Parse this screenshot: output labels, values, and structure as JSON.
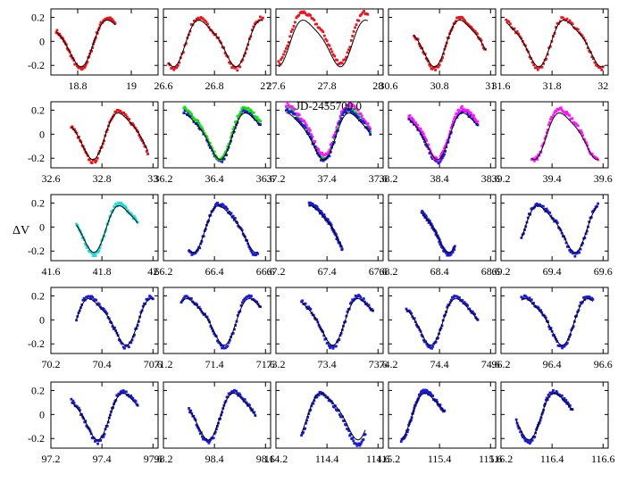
{
  "chart_data": {
    "type": "scatter",
    "ylabel": "ΔV",
    "xlabel": "JD-2455700.0",
    "shared_yticks": [
      "0.2",
      "0",
      "-0.2"
    ],
    "ylim": [
      -0.28,
      0.27
    ],
    "colors": {
      "red": "#e8141c",
      "blue": "#1a1ad8",
      "green": "#14dc14",
      "magenta": "#ff14ff",
      "cyan": "#22d8d8",
      "model": "#000000"
    },
    "panels": [
      {
        "xlim": [
          18.7,
          19.1
        ],
        "xticks": [
          "18.8",
          "19"
        ],
        "xtick_values": [
          18.8,
          19.0
        ],
        "data_range": [
          18.72,
          18.94
        ],
        "phase": 0.0,
        "shift": 0.0,
        "series": [
          "red"
        ]
      },
      {
        "xlim": [
          26.6,
          27.02
        ],
        "xticks": [
          "26.6",
          "26.8",
          "27"
        ],
        "xtick_values": [
          26.6,
          26.8,
          27.0
        ],
        "data_range": [
          26.62,
          26.99
        ],
        "phase": 0.05,
        "shift": 0.0,
        "series": [
          "red"
        ]
      },
      {
        "xlim": [
          27.6,
          28.02
        ],
        "xticks": [
          "27.6",
          "27.8",
          "28"
        ],
        "xtick_values": [
          27.6,
          27.8,
          28.0
        ],
        "data_range": [
          27.61,
          27.96
        ],
        "phase": 0.1,
        "shift": 0.05,
        "series": [
          "red"
        ]
      },
      {
        "xlim": [
          30.6,
          31.02
        ],
        "xticks": [
          "30.6",
          "30.8",
          "31"
        ],
        "xtick_values": [
          30.6,
          30.8,
          31.0
        ],
        "data_range": [
          30.7,
          30.98
        ],
        "phase": 0.15,
        "shift": 0.0,
        "series": [
          "red"
        ]
      },
      {
        "xlim": [
          31.6,
          32.02
        ],
        "xticks": [
          "31.6",
          "31.8",
          "32"
        ],
        "xtick_values": [
          31.6,
          31.8,
          32.0
        ],
        "data_range": [
          31.62,
          32.0
        ],
        "phase": 0.2,
        "shift": 0.0,
        "series": [
          "red"
        ]
      },
      {
        "xlim": [
          32.6,
          33.02
        ],
        "xticks": [
          "32.6",
          "32.8",
          "33"
        ],
        "xtick_values": [
          32.6,
          32.8,
          33.0
        ],
        "data_range": [
          32.68,
          32.98
        ],
        "phase": 0.05,
        "shift": 0.0,
        "series": [
          "red"
        ]
      },
      {
        "xlim": [
          36.2,
          36.62
        ],
        "xticks": [
          "36.2",
          "36.4",
          "36.6"
        ],
        "xtick_values": [
          36.2,
          36.4,
          36.6
        ],
        "data_range": [
          36.28,
          36.58
        ],
        "phase": 0.12,
        "shift": 0.0,
        "series": [
          "blue",
          "green"
        ]
      },
      {
        "xlim": [
          37.2,
          37.62
        ],
        "xticks": [
          "37.2",
          "37.4",
          "37.6"
        ],
        "xtick_values": [
          37.2,
          37.4,
          37.6
        ],
        "data_range": [
          37.24,
          37.57
        ],
        "phase": 0.18,
        "shift": 0.03,
        "series": [
          "green",
          "magenta",
          "blue"
        ]
      },
      {
        "xlim": [
          38.2,
          38.62
        ],
        "xticks": [
          "38.2",
          "38.4",
          "38.6"
        ],
        "xtick_values": [
          38.2,
          38.4,
          38.6
        ],
        "data_range": [
          38.28,
          38.55
        ],
        "phase": 0.08,
        "shift": 0.0,
        "series": [
          "blue",
          "magenta"
        ]
      },
      {
        "xlim": [
          39.2,
          39.62
        ],
        "xticks": [
          "39.2",
          "39.4",
          "39.6"
        ],
        "xtick_values": [
          39.2,
          39.4,
          39.6
        ],
        "data_range": [
          39.32,
          39.58
        ],
        "phase": 0.25,
        "shift": 0.02,
        "series": [
          "magenta"
        ]
      },
      {
        "xlim": [
          41.6,
          42.02
        ],
        "xticks": [
          "41.6",
          "41.8",
          "42"
        ],
        "xtick_values": [
          41.6,
          41.8,
          42.0
        ],
        "data_range": [
          41.7,
          41.94
        ],
        "phase": 0.3,
        "shift": 0.0,
        "series": [
          "cyan"
        ]
      },
      {
        "xlim": [
          66.2,
          66.62
        ],
        "xticks": [
          "66.2",
          "66.4",
          "66.6"
        ],
        "xtick_values": [
          66.2,
          66.4,
          66.6
        ],
        "data_range": [
          66.3,
          66.57
        ],
        "phase": 0.1,
        "shift": 0.0,
        "series": [
          "blue"
        ]
      },
      {
        "xlim": [
          67.2,
          67.62
        ],
        "xticks": [
          "67.2",
          "67.4",
          "67.6"
        ],
        "xtick_values": [
          67.2,
          67.4,
          67.6
        ],
        "data_range": [
          67.33,
          67.46
        ],
        "phase": 0.35,
        "shift": 0.0,
        "series": [
          "blue"
        ]
      },
      {
        "xlim": [
          68.2,
          68.62
        ],
        "xticks": [
          "68.2",
          "68.4",
          "68.6"
        ],
        "xtick_values": [
          68.2,
          68.4,
          68.6
        ],
        "data_range": [
          68.33,
          68.46
        ],
        "phase": 0.45,
        "shift": 0.0,
        "series": [
          "blue"
        ]
      },
      {
        "xlim": [
          69.2,
          69.62
        ],
        "xticks": [
          "69.2",
          "69.4",
          "69.6"
        ],
        "xtick_values": [
          69.2,
          69.4,
          69.6
        ],
        "data_range": [
          69.28,
          69.58
        ],
        "phase": 0.15,
        "shift": 0.0,
        "series": [
          "blue"
        ]
      },
      {
        "xlim": [
          70.2,
          70.62
        ],
        "xticks": [
          "70.2",
          "70.4",
          "70.6"
        ],
        "xtick_values": [
          70.2,
          70.4,
          70.6
        ],
        "data_range": [
          70.3,
          70.6
        ],
        "phase": 0.05,
        "shift": 0.0,
        "series": [
          "blue"
        ]
      },
      {
        "xlim": [
          71.2,
          71.62
        ],
        "xticks": [
          "71.2",
          "71.4",
          "71.6"
        ],
        "xtick_values": [
          71.2,
          71.4,
          71.6
        ],
        "data_range": [
          71.27,
          71.58
        ],
        "phase": 0.2,
        "shift": 0.0,
        "series": [
          "blue"
        ]
      },
      {
        "xlim": [
          73.2,
          73.62
        ],
        "xticks": [
          "73.2",
          "73.4",
          "73.6"
        ],
        "xtick_values": [
          73.2,
          73.4,
          73.6
        ],
        "data_range": [
          73.3,
          73.58
        ],
        "phase": 0.1,
        "shift": 0.0,
        "series": [
          "blue"
        ]
      },
      {
        "xlim": [
          74.2,
          74.62
        ],
        "xticks": [
          "74.2",
          "74.4",
          "74.6"
        ],
        "xtick_values": [
          74.2,
          74.4,
          74.6
        ],
        "data_range": [
          74.27,
          74.55
        ],
        "phase": 0.25,
        "shift": 0.0,
        "series": [
          "blue"
        ]
      },
      {
        "xlim": [
          96.2,
          96.62
        ],
        "xticks": [
          "96.2",
          "96.4",
          "96.6"
        ],
        "xtick_values": [
          96.2,
          96.4,
          96.6
        ],
        "data_range": [
          96.28,
          96.56
        ],
        "phase": 0.15,
        "shift": 0.0,
        "series": [
          "blue"
        ]
      },
      {
        "xlim": [
          97.2,
          97.62
        ],
        "xticks": [
          "97.2",
          "97.4",
          "97.6"
        ],
        "xtick_values": [
          97.2,
          97.4,
          97.6
        ],
        "data_range": [
          97.28,
          97.54
        ],
        "phase": 0.3,
        "shift": 0.0,
        "series": [
          "blue"
        ]
      },
      {
        "xlim": [
          98.2,
          98.62
        ],
        "xticks": [
          "98.2",
          "98.4",
          "98.6"
        ],
        "xtick_values": [
          98.2,
          98.4,
          98.6
        ],
        "data_range": [
          98.3,
          98.56
        ],
        "phase": 0.25,
        "shift": 0.0,
        "series": [
          "blue"
        ]
      },
      {
        "xlim": [
          114.2,
          114.62
        ],
        "xticks": [
          "114.2",
          "114.4",
          "114.6"
        ],
        "xtick_values": [
          114.2,
          114.4,
          114.6
        ],
        "data_range": [
          114.3,
          114.55
        ],
        "phase": 0.35,
        "shift": -0.02,
        "series": [
          "blue"
        ]
      },
      {
        "xlim": [
          115.2,
          115.62
        ],
        "xticks": [
          "115.2",
          "115.4",
          "115.6"
        ],
        "xtick_values": [
          115.2,
          115.4,
          115.6
        ],
        "data_range": [
          115.25,
          115.42
        ],
        "phase": 0.4,
        "shift": 0.0,
        "series": [
          "blue"
        ]
      },
      {
        "xlim": [
          116.2,
          116.62
        ],
        "xticks": [
          "116.2",
          "116.4",
          "116.6"
        ],
        "xtick_values": [
          116.2,
          116.4,
          116.6
        ],
        "data_range": [
          116.26,
          116.48
        ],
        "phase": 0.05,
        "shift": 0.0,
        "series": [
          "blue"
        ]
      }
    ]
  }
}
